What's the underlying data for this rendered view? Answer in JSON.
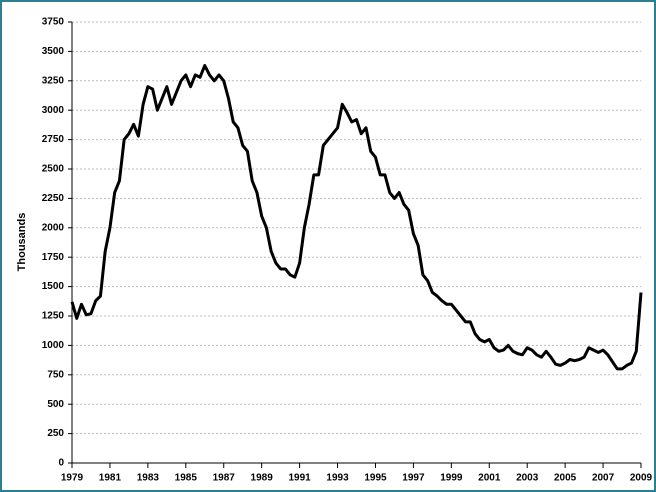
{
  "chart_data": {
    "type": "line",
    "y_label": "Thousands",
    "x": [
      1979,
      1979.25,
      1979.5,
      1979.75,
      1980,
      1980.25,
      1980.5,
      1980.75,
      1981,
      1981.25,
      1981.5,
      1981.75,
      1982,
      1982.25,
      1982.5,
      1982.75,
      1983,
      1983.25,
      1983.5,
      1983.75,
      1984,
      1984.25,
      1984.5,
      1984.75,
      1985,
      1985.25,
      1985.5,
      1985.75,
      1986,
      1986.25,
      1986.5,
      1986.75,
      1987,
      1987.25,
      1987.5,
      1987.75,
      1988,
      1988.25,
      1988.5,
      1988.75,
      1989,
      1989.25,
      1989.5,
      1989.75,
      1990,
      1990.25,
      1990.5,
      1990.75,
      1991,
      1991.25,
      1991.5,
      1991.75,
      1992,
      1992.25,
      1992.5,
      1992.75,
      1993,
      1993.25,
      1993.5,
      1993.75,
      1994,
      1994.25,
      1994.5,
      1994.75,
      1995,
      1995.25,
      1995.5,
      1995.75,
      1996,
      1996.25,
      1996.5,
      1996.75,
      1997,
      1997.25,
      1997.5,
      1997.75,
      1998,
      1998.25,
      1998.5,
      1998.75,
      1999,
      1999.25,
      1999.5,
      1999.75,
      2000,
      2000.25,
      2000.5,
      2000.75,
      2001,
      2001.25,
      2001.5,
      2001.75,
      2002,
      2002.25,
      2002.5,
      2002.75,
      2003,
      2003.25,
      2003.5,
      2003.75,
      2004,
      2004.25,
      2004.5,
      2004.75,
      2005,
      2005.25,
      2005.5,
      2005.75,
      2006,
      2006.25,
      2006.5,
      2006.75,
      2007,
      2007.25,
      2007.5,
      2007.75,
      2008,
      2008.25,
      2008.5,
      2008.75,
      2009
    ],
    "series": [
      {
        "name": "Thousands",
        "color": "#000000",
        "values": [
          1370,
          1230,
          1350,
          1260,
          1270,
          1380,
          1420,
          1800,
          2000,
          2300,
          2400,
          2750,
          2800,
          2880,
          2780,
          3050,
          3200,
          3180,
          3000,
          3100,
          3200,
          3050,
          3150,
          3250,
          3300,
          3200,
          3300,
          3280,
          3380,
          3300,
          3250,
          3300,
          3250,
          3100,
          2900,
          2850,
          2700,
          2650,
          2400,
          2300,
          2100,
          2000,
          1800,
          1700,
          1650,
          1650,
          1600,
          1580,
          1700,
          2000,
          2200,
          2450,
          2450,
          2700,
          2750,
          2800,
          2850,
          3050,
          2980,
          2900,
          2920,
          2800,
          2850,
          2650,
          2600,
          2450,
          2450,
          2300,
          2250,
          2300,
          2200,
          2150,
          1950,
          1850,
          1600,
          1550,
          1450,
          1420,
          1380,
          1350,
          1350,
          1300,
          1250,
          1200,
          1200,
          1100,
          1050,
          1030,
          1050,
          980,
          950,
          960,
          1000,
          950,
          930,
          920,
          980,
          960,
          920,
          900,
          950,
          900,
          840,
          830,
          850,
          880,
          870,
          880,
          900,
          980,
          960,
          940,
          960,
          920,
          860,
          800,
          800,
          830,
          850,
          950,
          1450
        ]
      }
    ],
    "xlim": [
      1979,
      2009
    ],
    "xticks": [
      1979,
      1981,
      1983,
      1985,
      1987,
      1989,
      1991,
      1993,
      1995,
      1997,
      1999,
      2001,
      2003,
      2005,
      2007,
      2009
    ],
    "ylim": [
      0,
      3750
    ],
    "yticks": [
      0,
      250,
      500,
      750,
      1000,
      1250,
      1500,
      1750,
      2000,
      2250,
      2500,
      2750,
      3000,
      3250,
      3500,
      3750
    ],
    "grid": true
  }
}
